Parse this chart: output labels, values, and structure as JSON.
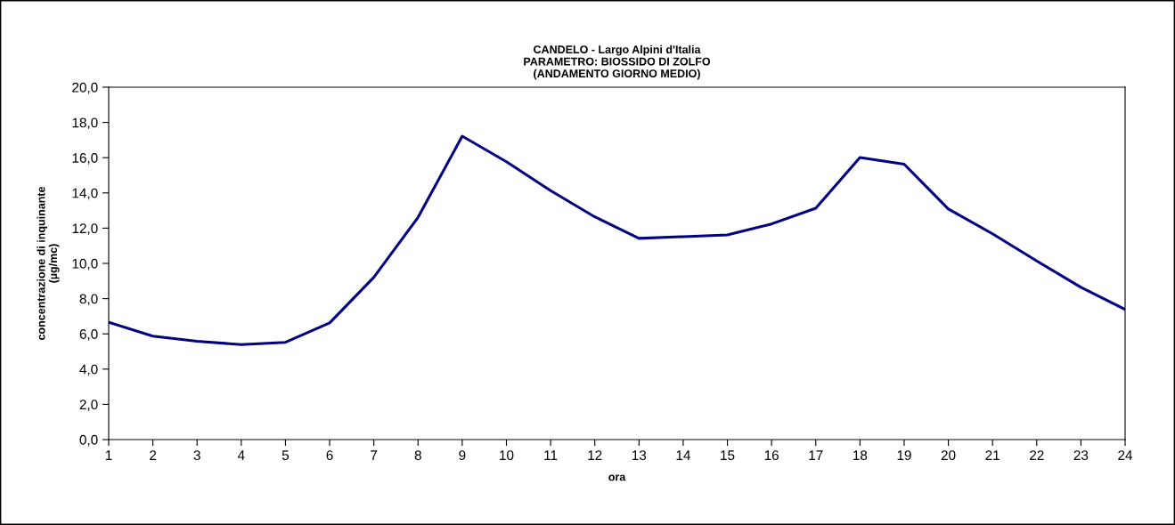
{
  "chart_data": {
    "type": "line",
    "title": "CANDELO - Largo Alpini d'Italia\nPARAMETRO: BIOSSIDO DI ZOLFO\n(ANDAMENTO GIORNO MEDIO)",
    "xlabel": "ora",
    "ylabel": "concentrazione di inquinante\n(µg/mc)",
    "categories": [
      "1",
      "2",
      "3",
      "4",
      "5",
      "6",
      "7",
      "8",
      "9",
      "10",
      "11",
      "12",
      "13",
      "14",
      "15",
      "16",
      "17",
      "18",
      "19",
      "20",
      "21",
      "22",
      "23",
      "24"
    ],
    "series": [
      {
        "color": "#000080",
        "values": [
          6.66,
          5.87,
          5.58,
          5.39,
          5.52,
          6.62,
          9.21,
          12.61,
          17.22,
          15.77,
          14.13,
          12.64,
          11.42,
          11.52,
          11.62,
          12.24,
          13.13,
          16.01,
          15.63,
          13.09,
          11.68,
          10.14,
          8.64,
          7.39
        ]
      }
    ],
    "ylim": [
      0,
      20
    ],
    "yticks": [
      {
        "value": 0,
        "label": "0,0"
      },
      {
        "value": 2,
        "label": "2,0"
      },
      {
        "value": 4,
        "label": "4,0"
      },
      {
        "value": 6,
        "label": "6,0"
      },
      {
        "value": 8,
        "label": "8,0"
      },
      {
        "value": 10,
        "label": "10,0"
      },
      {
        "value": 12,
        "label": "12,0"
      },
      {
        "value": 14,
        "label": "14,0"
      },
      {
        "value": 16,
        "label": "16,0"
      },
      {
        "value": 18,
        "label": "18,0"
      },
      {
        "value": 20,
        "label": "20,0"
      }
    ],
    "grid": false,
    "legend": false,
    "marker": "none",
    "line_style": "solid"
  }
}
